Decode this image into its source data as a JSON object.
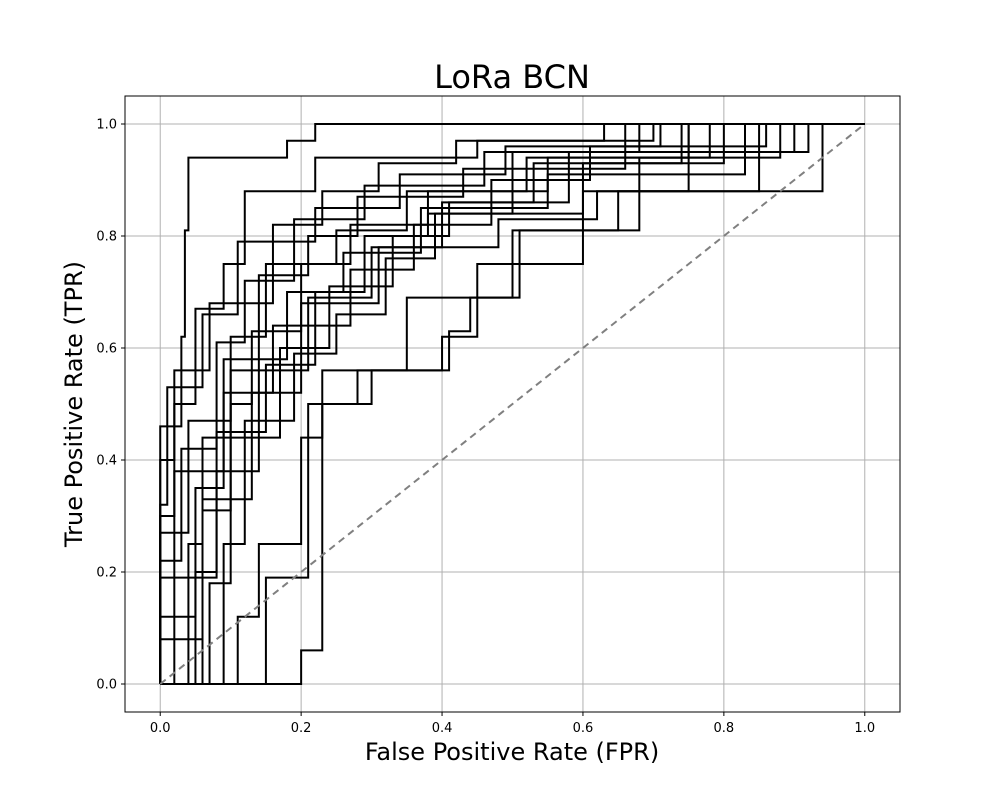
{
  "chart_data": {
    "type": "line",
    "title": "LoRa BCN",
    "xlabel": "False Positive Rate (FPR)",
    "ylabel": "True Positive Rate (TPR)",
    "xlim": [
      -0.05,
      1.05
    ],
    "ylim": [
      -0.05,
      1.05
    ],
    "xticks": [
      0.0,
      0.2,
      0.4,
      0.6,
      0.8,
      1.0
    ],
    "yticks": [
      0.0,
      0.2,
      0.4,
      0.6,
      0.8,
      1.0
    ],
    "xtick_labels": [
      "0.0",
      "0.2",
      "0.4",
      "0.6",
      "0.8",
      "1.0"
    ],
    "ytick_labels": [
      "0.0",
      "0.2",
      "0.4",
      "0.6",
      "0.8",
      "1.0"
    ],
    "grid": true,
    "colors": {
      "curve": "#000000",
      "baseline": "#808080",
      "grid": "#b0b0b0"
    },
    "baseline": {
      "x": [
        0,
        1
      ],
      "y": [
        0,
        1
      ],
      "style": "dashed"
    },
    "series": [
      {
        "x": [
          0,
          0,
          0.03,
          0.03,
          0.035,
          0.035,
          0.04,
          0.04,
          0.09,
          0.09,
          0.18,
          0.18,
          0.22,
          0.22,
          0.35,
          0.35,
          0.55,
          0.55,
          1.0
        ],
        "y": [
          0,
          0.46,
          0.46,
          0.62,
          0.62,
          0.81,
          0.81,
          0.94,
          0.94,
          0.94,
          0.94,
          0.97,
          0.97,
          1.0,
          1.0,
          1.0,
          1.0,
          1.0,
          1.0
        ]
      },
      {
        "x": [
          0,
          0,
          0.02,
          0.02,
          0.05,
          0.05,
          0.09,
          0.09,
          0.12,
          0.12,
          0.22,
          0.22,
          0.45,
          0.45,
          0.7,
          0.7,
          1.0
        ],
        "y": [
          0,
          0.3,
          0.3,
          0.5,
          0.5,
          0.67,
          0.67,
          0.75,
          0.75,
          0.88,
          0.88,
          0.94,
          0.94,
          0.97,
          0.97,
          1.0,
          1.0
        ]
      },
      {
        "x": [
          0,
          0.04,
          0.04,
          0.06,
          0.06,
          0.1,
          0.1,
          0.15,
          0.15,
          0.25,
          0.25,
          0.35,
          0.35,
          0.55,
          0.55,
          0.75,
          0.75,
          1.0
        ],
        "y": [
          0,
          0,
          0.25,
          0.25,
          0.44,
          0.44,
          0.62,
          0.62,
          0.75,
          0.75,
          0.81,
          0.81,
          0.88,
          0.88,
          0.94,
          0.94,
          1.0,
          1.0
        ]
      },
      {
        "x": [
          0,
          0,
          0.08,
          0.08,
          0.14,
          0.14,
          0.21,
          0.21,
          0.3,
          0.3,
          0.48,
          0.48,
          0.62,
          0.62,
          0.94,
          0.94,
          1.0
        ],
        "y": [
          0,
          0.19,
          0.19,
          0.38,
          0.38,
          0.56,
          0.56,
          0.69,
          0.69,
          0.78,
          0.78,
          0.83,
          0.83,
          0.88,
          0.88,
          1.0,
          1.0
        ]
      },
      {
        "x": [
          0,
          0.11,
          0.11,
          0.14,
          0.14,
          0.2,
          0.2,
          0.23,
          0.23,
          0.35,
          0.35,
          0.5,
          0.5,
          0.65,
          0.65,
          0.85,
          0.85,
          1.0
        ],
        "y": [
          0,
          0,
          0.12,
          0.12,
          0.25,
          0.25,
          0.44,
          0.44,
          0.56,
          0.56,
          0.69,
          0.69,
          0.81,
          0.81,
          0.88,
          0.88,
          1.0,
          1.0
        ]
      },
      {
        "x": [
          0,
          0,
          0.02,
          0.02,
          0.07,
          0.07,
          0.16,
          0.16,
          0.23,
          0.23,
          0.31,
          0.31,
          0.42,
          0.42,
          0.63,
          0.63,
          1.0
        ],
        "y": [
          0,
          0.4,
          0.4,
          0.56,
          0.56,
          0.68,
          0.68,
          0.82,
          0.82,
          0.88,
          0.88,
          0.93,
          0.93,
          0.97,
          0.97,
          1.0,
          1.0
        ]
      },
      {
        "x": [
          0,
          0.06,
          0.06,
          0.1,
          0.1,
          0.13,
          0.13,
          0.2,
          0.2,
          0.27,
          0.27,
          0.38,
          0.38,
          0.52,
          0.52,
          0.78,
          0.78,
          1.0
        ],
        "y": [
          0,
          0,
          0.31,
          0.31,
          0.5,
          0.5,
          0.63,
          0.63,
          0.75,
          0.75,
          0.82,
          0.82,
          0.88,
          0.88,
          0.94,
          0.94,
          1.0,
          1.0
        ]
      },
      {
        "x": [
          0,
          0,
          0.05,
          0.05,
          0.09,
          0.09,
          0.18,
          0.18,
          0.26,
          0.26,
          0.37,
          0.37,
          0.55,
          0.55,
          0.83,
          0.83,
          1.0
        ],
        "y": [
          0,
          0.12,
          0.12,
          0.35,
          0.35,
          0.58,
          0.58,
          0.7,
          0.7,
          0.77,
          0.77,
          0.85,
          0.85,
          0.91,
          0.91,
          1.0,
          1.0
        ]
      },
      {
        "x": [
          0,
          0.2,
          0.2,
          0.23,
          0.23,
          0.28,
          0.28,
          0.4,
          0.4,
          0.45,
          0.45,
          0.6,
          0.6,
          0.75,
          0.75,
          1.0
        ],
        "y": [
          0,
          0,
          0.06,
          0.06,
          0.5,
          0.5,
          0.56,
          0.56,
          0.62,
          0.62,
          0.75,
          0.75,
          0.88,
          0.88,
          1.0,
          1.0
        ]
      },
      {
        "x": [
          0,
          0.07,
          0.07,
          0.1,
          0.1,
          0.17,
          0.17,
          0.24,
          0.24,
          0.33,
          0.33,
          0.41,
          0.41,
          0.58,
          0.58,
          0.9,
          0.9,
          1.0
        ],
        "y": [
          0,
          0,
          0.18,
          0.18,
          0.44,
          0.44,
          0.6,
          0.6,
          0.71,
          0.71,
          0.8,
          0.8,
          0.86,
          0.86,
          0.95,
          0.95,
          1.0,
          1.0
        ]
      },
      {
        "x": [
          0,
          0,
          0.03,
          0.03,
          0.08,
          0.08,
          0.12,
          0.12,
          0.19,
          0.19,
          0.29,
          0.29,
          0.46,
          0.46,
          0.68,
          0.68,
          1.0
        ],
        "y": [
          0,
          0.22,
          0.22,
          0.42,
          0.42,
          0.61,
          0.61,
          0.72,
          0.72,
          0.83,
          0.83,
          0.89,
          0.89,
          0.95,
          0.95,
          1.0,
          1.0
        ]
      },
      {
        "x": [
          0,
          0.15,
          0.15,
          0.21,
          0.21,
          0.3,
          0.3,
          0.41,
          0.41,
          0.44,
          0.44,
          0.51,
          0.51,
          0.68,
          0.68,
          0.88,
          0.88,
          1.0
        ],
        "y": [
          0,
          0,
          0.19,
          0.19,
          0.5,
          0.5,
          0.56,
          0.56,
          0.63,
          0.63,
          0.69,
          0.69,
          0.81,
          0.81,
          0.94,
          0.94,
          1.0,
          1.0
        ]
      },
      {
        "x": [
          0,
          0,
          0.01,
          0.01,
          0.06,
          0.06,
          0.11,
          0.11,
          0.22,
          0.22,
          0.34,
          0.34,
          0.49,
          0.49,
          0.71,
          0.71,
          1.0
        ],
        "y": [
          0,
          0.32,
          0.32,
          0.53,
          0.53,
          0.66,
          0.66,
          0.79,
          0.79,
          0.85,
          0.85,
          0.91,
          0.91,
          0.96,
          0.96,
          1.0,
          1.0
        ]
      },
      {
        "x": [
          0,
          0.09,
          0.09,
          0.12,
          0.12,
          0.19,
          0.19,
          0.25,
          0.25,
          0.32,
          0.32,
          0.39,
          0.39,
          0.6,
          0.6,
          0.8,
          0.8,
          1.0
        ],
        "y": [
          0,
          0,
          0.25,
          0.25,
          0.47,
          0.47,
          0.59,
          0.59,
          0.66,
          0.66,
          0.76,
          0.76,
          0.84,
          0.84,
          0.93,
          0.93,
          1.0,
          1.0
        ]
      },
      {
        "x": [
          0,
          0,
          0.04,
          0.04,
          0.1,
          0.1,
          0.14,
          0.14,
          0.21,
          0.21,
          0.28,
          0.28,
          0.43,
          0.43,
          0.66,
          0.66,
          1.0
        ],
        "y": [
          0,
          0.27,
          0.27,
          0.47,
          0.47,
          0.56,
          0.56,
          0.73,
          0.73,
          0.8,
          0.8,
          0.87,
          0.87,
          0.92,
          0.92,
          1.0,
          1.0
        ]
      },
      {
        "x": [
          0,
          0.02,
          0.02,
          0.09,
          0.09,
          0.16,
          0.16,
          0.27,
          0.27,
          0.36,
          0.36,
          0.47,
          0.47,
          0.61,
          0.61,
          0.86,
          0.86,
          1.0
        ],
        "y": [
          0,
          0,
          0.38,
          0.38,
          0.52,
          0.52,
          0.64,
          0.64,
          0.74,
          0.74,
          0.82,
          0.82,
          0.9,
          0.9,
          0.96,
          0.96,
          1.0,
          1.0
        ]
      },
      {
        "x": [
          0,
          0,
          0.06,
          0.06,
          0.13,
          0.13,
          0.2,
          0.2,
          0.31,
          0.31,
          0.4,
          0.4,
          0.53,
          0.53,
          0.74,
          0.74,
          1.0
        ],
        "y": [
          0,
          0.08,
          0.08,
          0.33,
          0.33,
          0.52,
          0.52,
          0.68,
          0.68,
          0.78,
          0.78,
          0.86,
          0.86,
          0.93,
          0.93,
          1.0,
          1.0
        ]
      },
      {
        "x": [
          0,
          0.05,
          0.05,
          0.08,
          0.08,
          0.15,
          0.15,
          0.22,
          0.22,
          0.29,
          0.29,
          0.38,
          0.38,
          0.5,
          0.5,
          0.92,
          0.92,
          1.0
        ],
        "y": [
          0,
          0,
          0.2,
          0.2,
          0.45,
          0.45,
          0.57,
          0.57,
          0.7,
          0.7,
          0.8,
          0.8,
          0.84,
          0.84,
          0.95,
          0.95,
          1.0,
          1.0
        ]
      }
    ]
  }
}
